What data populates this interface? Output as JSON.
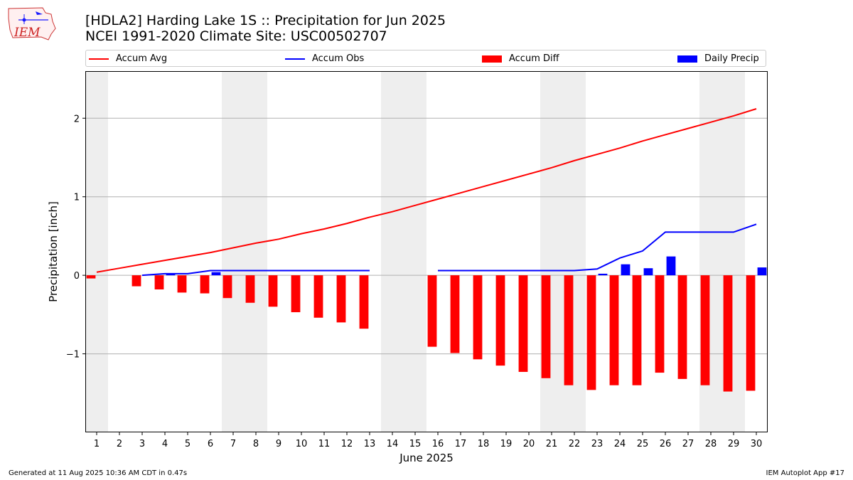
{
  "header": {
    "title_line1": "[HDLA2] Harding Lake 1S :: Precipitation for Jun 2025",
    "title_line2": "NCEI 1991-2020 Climate Site: USC00502707",
    "logo_text": "IEM"
  },
  "legend": [
    {
      "label": "Accum Avg",
      "color": "#ff0000",
      "kind": "line"
    },
    {
      "label": "Accum Obs",
      "color": "#0000ff",
      "kind": "line"
    },
    {
      "label": "Accum Diff",
      "color": "#ff0000",
      "kind": "box"
    },
    {
      "label": "Daily Precip",
      "color": "#0000ff",
      "kind": "box"
    }
  ],
  "footer": {
    "left": "Generated at 11 Aug 2025 10:36 AM CDT in 0.47s",
    "right": "IEM Autoplot App #17"
  },
  "chart_data": {
    "type": "bar",
    "xlabel": "June 2025",
    "ylabel": "Precipitation [inch]",
    "ylim": [
      -2.0,
      2.6
    ],
    "xlim": [
      0.5,
      30.5
    ],
    "yticks": [
      -1,
      0,
      1,
      2
    ],
    "ytick_labels": [
      "−1",
      "0",
      "1",
      "2"
    ],
    "grid": "y",
    "legend_position": "top",
    "weekend_shading": [
      [
        0.5,
        1.5
      ],
      [
        6.5,
        8.5
      ],
      [
        13.5,
        15.5
      ],
      [
        20.5,
        22.5
      ],
      [
        27.5,
        29.5
      ]
    ],
    "shading_color": "#eeeeee",
    "x": [
      1,
      2,
      3,
      4,
      5,
      6,
      7,
      8,
      9,
      10,
      11,
      12,
      13,
      14,
      15,
      16,
      17,
      18,
      19,
      20,
      21,
      22,
      23,
      24,
      25,
      26,
      27,
      28,
      29,
      30
    ],
    "series": [
      {
        "name": "Accum Avg",
        "kind": "line",
        "color": "#ff0000",
        "values": [
          0.04,
          0.09,
          0.14,
          0.19,
          0.24,
          0.29,
          0.35,
          0.41,
          0.46,
          0.53,
          0.59,
          0.66,
          0.74,
          0.81,
          0.89,
          0.97,
          1.05,
          1.13,
          1.21,
          1.29,
          1.37,
          1.46,
          1.54,
          1.62,
          1.71,
          1.79,
          1.87,
          1.95,
          2.03,
          2.12
        ]
      },
      {
        "name": "Accum Obs",
        "kind": "line",
        "color": "#0000ff",
        "values": [
          null,
          null,
          0.0,
          0.02,
          0.02,
          0.06,
          0.06,
          0.06,
          0.06,
          0.06,
          0.06,
          0.06,
          0.06,
          null,
          null,
          0.06,
          0.06,
          0.06,
          0.06,
          0.06,
          0.06,
          0.06,
          0.08,
          0.22,
          0.31,
          0.55,
          0.55,
          0.55,
          0.55,
          0.65
        ]
      },
      {
        "name": "Accum Diff",
        "kind": "bar",
        "color": "#ff0000",
        "offset": -0.25,
        "values": [
          -0.04,
          null,
          -0.14,
          -0.18,
          -0.22,
          -0.23,
          -0.29,
          -0.35,
          -0.4,
          -0.47,
          -0.54,
          -0.6,
          -0.68,
          null,
          null,
          -0.91,
          -0.99,
          -1.07,
          -1.15,
          -1.23,
          -1.31,
          -1.4,
          -1.46,
          -1.4,
          -1.4,
          -1.24,
          -1.32,
          -1.4,
          -1.48,
          -1.47
        ]
      },
      {
        "name": "Daily Precip",
        "kind": "bar",
        "color": "#0000ff",
        "offset": 0.25,
        "values": [
          null,
          null,
          null,
          0.02,
          null,
          0.04,
          null,
          null,
          null,
          null,
          null,
          null,
          null,
          null,
          null,
          null,
          null,
          null,
          null,
          null,
          null,
          null,
          0.02,
          0.14,
          0.09,
          0.24,
          null,
          null,
          null,
          0.1
        ]
      }
    ]
  }
}
